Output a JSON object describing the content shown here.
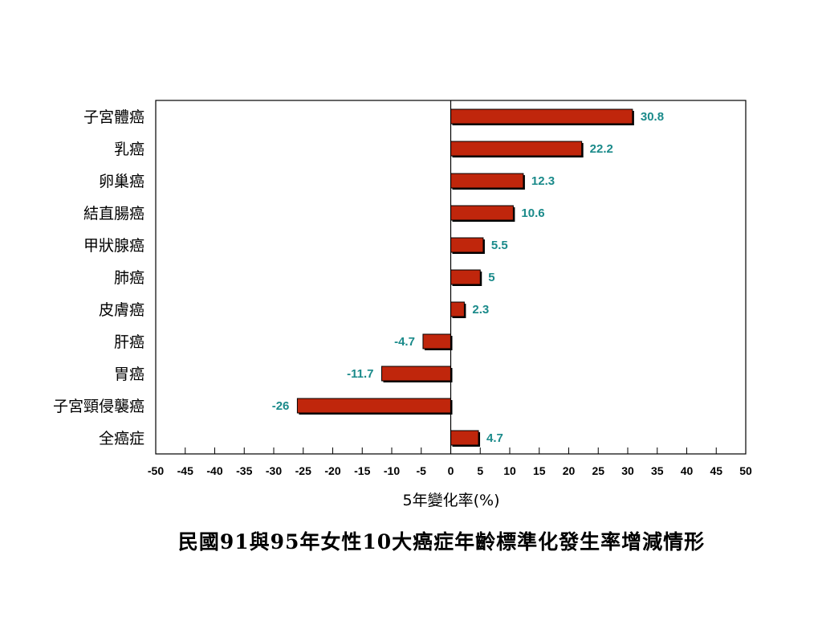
{
  "chart_data": {
    "type": "bar",
    "orientation": "horizontal",
    "title": "民國91與95年女性10大癌症年齡標準化發生率增減情形",
    "xlabel": "5年變化率(%)",
    "ylabel": "",
    "categories": [
      "子宮體癌",
      "乳癌",
      "卵巢癌",
      "結直腸癌",
      "甲狀腺癌",
      "肺癌",
      "皮膚癌",
      "肝癌",
      "胃癌",
      "子宮頸侵襲癌",
      "全癌症"
    ],
    "values": [
      30.8,
      22.2,
      12.3,
      10.6,
      5.5,
      5,
      2.3,
      -4.7,
      -11.7,
      -26,
      4.7
    ],
    "value_labels": [
      "30.8",
      "22.2",
      "12.3",
      "10.6",
      "5.5",
      "5",
      "2.3",
      "-4.7",
      "-11.7",
      "-26",
      "4.7"
    ],
    "xlim": [
      -50,
      50
    ],
    "xticks": [
      -50,
      -45,
      -40,
      -35,
      -30,
      -25,
      -20,
      -15,
      -10,
      -5,
      0,
      5,
      10,
      15,
      20,
      25,
      30,
      35,
      40,
      45,
      50
    ],
    "grid": false,
    "legend": "none",
    "bar_color": "#c0260c",
    "label_color": "#1a8a8a"
  }
}
